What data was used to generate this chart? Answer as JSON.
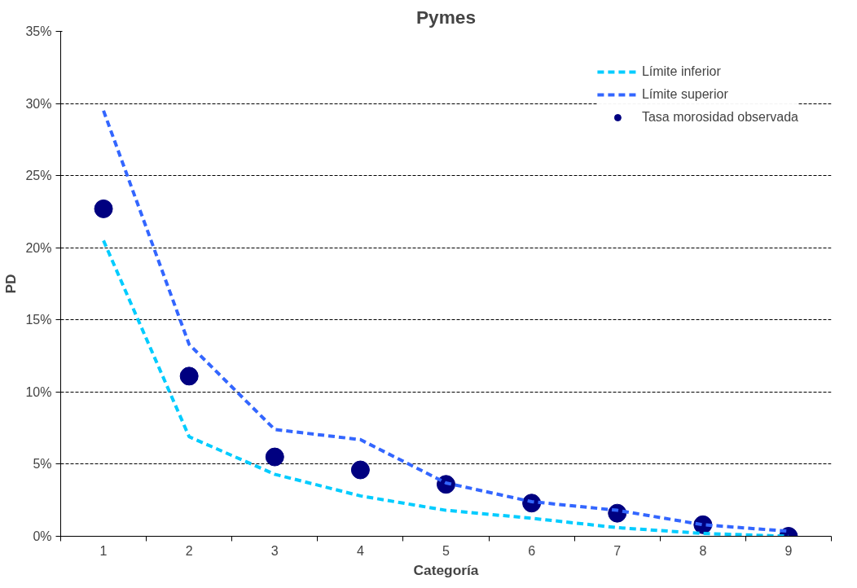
{
  "chart_data": {
    "type": "line",
    "title": "Pymes",
    "xlabel": "Categoría",
    "ylabel": "PD",
    "categories": [
      "1",
      "2",
      "3",
      "4",
      "5",
      "6",
      "7",
      "8",
      "9"
    ],
    "series": [
      {
        "name": "Límite inferior",
        "color": "#00ccff",
        "line_style": "dashed",
        "values": [
          20.5,
          6.9,
          4.3,
          2.8,
          1.8,
          1.25,
          0.6,
          0.2,
          0
        ]
      },
      {
        "name": "Límite superior",
        "color": "#3366ff",
        "line_style": "dashed",
        "values": [
          29.5,
          13.3,
          7.4,
          6.7,
          3.7,
          2.4,
          1.8,
          0.8,
          0.35
        ]
      },
      {
        "name": "Tasa morosidad observada",
        "type": "scatter",
        "color": "#000080",
        "marker": "circle",
        "values": [
          22.7,
          11.1,
          5.5,
          4.6,
          3.6,
          2.3,
          1.6,
          0.8,
          0
        ]
      }
    ],
    "ylim": [
      0,
      35
    ],
    "yticks": [
      {
        "value": 0,
        "label": "0%"
      },
      {
        "value": 5,
        "label": "5%"
      },
      {
        "value": 10,
        "label": "10%"
      },
      {
        "value": 15,
        "label": "15%"
      },
      {
        "value": 20,
        "label": "20%"
      },
      {
        "value": 25,
        "label": "25%"
      },
      {
        "value": 30,
        "label": "30%"
      },
      {
        "value": 35,
        "label": "35%"
      }
    ],
    "grid": "y",
    "legend": "top right"
  }
}
